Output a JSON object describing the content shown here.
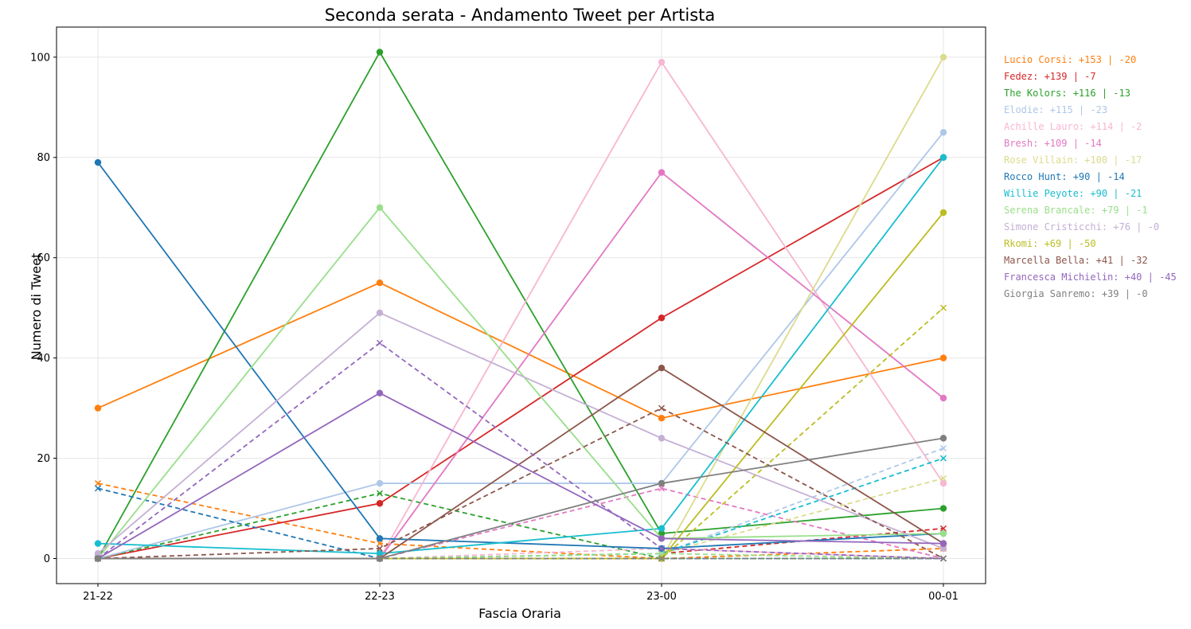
{
  "chart_data": {
    "type": "line",
    "title": "Seconda serata - Andamento Tweet per Artista",
    "xlabel": "Fascia Oraria",
    "ylabel": "Numero di Tweet",
    "categories": [
      "21-22",
      "22-23",
      "23-00",
      "00-01"
    ],
    "ylim": [
      -5,
      106
    ],
    "yticks": [
      0,
      20,
      40,
      60,
      80,
      100
    ],
    "grid": true,
    "note": "solid lines with circle markers = positive tweets; dashed lines with x markers = negative tweets",
    "series": [
      {
        "name": "Lucio Corsi",
        "color": "#ff7f0e",
        "positive": [
          30,
          55,
          28,
          40
        ],
        "negative": [
          15,
          3,
          0,
          2
        ],
        "annotation": "Lucio Corsi: +153 | -20"
      },
      {
        "name": "Fedez",
        "color": "#d62728",
        "positive": [
          0,
          11,
          48,
          80
        ],
        "negative": [
          0,
          0,
          1,
          6
        ],
        "annotation": "Fedez: +139 | -7"
      },
      {
        "name": "The Kolors",
        "color": "#2ca02c",
        "positive": [
          0,
          101,
          5,
          10
        ],
        "negative": [
          0,
          13,
          0,
          0
        ],
        "annotation": "The Kolors: +116 | -13"
      },
      {
        "name": "Elodie",
        "color": "#aec7e8",
        "positive": [
          0,
          15,
          15,
          85
        ],
        "negative": [
          0,
          0,
          1,
          22
        ],
        "annotation": "Elodie: +115 | -23"
      },
      {
        "name": "Achille Lauro",
        "color": "#f7b6d2",
        "positive": [
          0,
          0,
          99,
          15
        ],
        "negative": [
          0,
          0,
          2,
          0
        ],
        "annotation": "Achille Lauro: +114 | -2"
      },
      {
        "name": "Bresh",
        "color": "#e377c2",
        "positive": [
          0,
          0,
          77,
          32
        ],
        "negative": [
          0,
          0,
          14,
          0
        ],
        "annotation": "Bresh: +109 | -14"
      },
      {
        "name": "Rose Villain",
        "color": "#dbdb8d",
        "positive": [
          0,
          0,
          0,
          100
        ],
        "negative": [
          0,
          0,
          1,
          16
        ],
        "annotation": "Rose Villain: +100 | -17"
      },
      {
        "name": "Rocco Hunt",
        "color": "#1f77b4",
        "positive": [
          79,
          4,
          2,
          5
        ],
        "negative": [
          14,
          0,
          0,
          0
        ],
        "annotation": "Rocco Hunt: +90 | -14"
      },
      {
        "name": "Willie Peyote",
        "color": "#17becf",
        "positive": [
          3,
          1,
          6,
          80
        ],
        "negative": [
          0,
          0,
          1,
          20
        ],
        "annotation": "Willie Peyote: +90 | -21"
      },
      {
        "name": "Serena Brancale",
        "color": "#98df8a",
        "positive": [
          0,
          70,
          4,
          5
        ],
        "negative": [
          0,
          0,
          1,
          0
        ],
        "annotation": "Serena Brancale: +79 | -1"
      },
      {
        "name": "Simone Cristicchi",
        "color": "#c5b0d5",
        "positive": [
          1,
          49,
          24,
          2
        ],
        "negative": [
          0,
          0,
          0,
          0
        ],
        "annotation": "Simone Cristicchi: +76 | -0"
      },
      {
        "name": "Rkomi",
        "color": "#bcbd22",
        "positive": [
          0,
          0,
          0,
          69
        ],
        "negative": [
          0,
          0,
          0,
          50
        ],
        "annotation": "Rkomi: +69 | -50"
      },
      {
        "name": "Marcella Bella",
        "color": "#8c564b",
        "positive": [
          0,
          0,
          38,
          3
        ],
        "negative": [
          0,
          2,
          30,
          0
        ],
        "annotation": "Marcella Bella: +41 | -32"
      },
      {
        "name": "Francesca Michielin",
        "color": "#9467bd",
        "positive": [
          0,
          33,
          4,
          3
        ],
        "negative": [
          0,
          43,
          2,
          0
        ],
        "annotation": "Francesca Michielin: +40 | -45"
      },
      {
        "name": "Giorgia Sanremo",
        "color": "#7f7f7f",
        "positive": [
          0,
          0,
          15,
          24
        ],
        "negative": [
          0,
          0,
          0,
          0
        ],
        "annotation": "Giorgia Sanremo: +39 | -0"
      }
    ]
  }
}
